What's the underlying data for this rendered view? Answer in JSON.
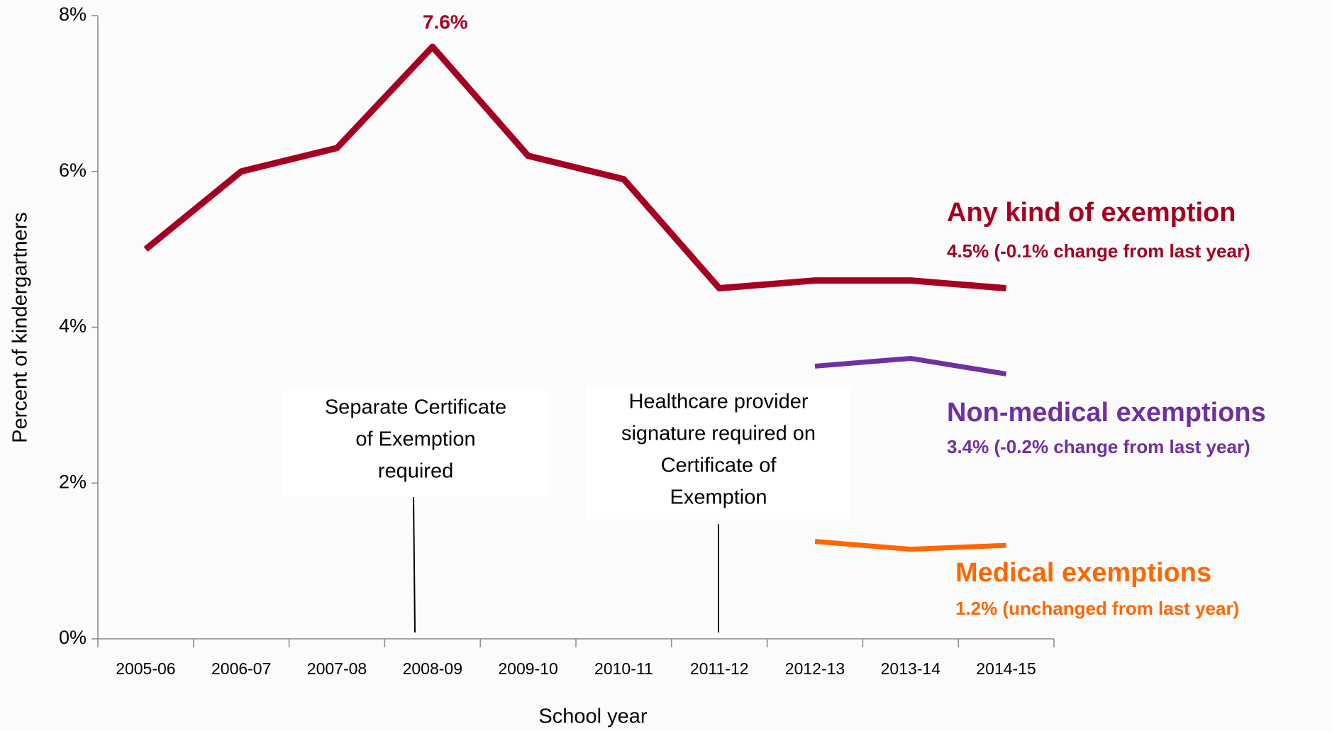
{
  "chart_data": {
    "type": "line",
    "x_label": "School year",
    "y_label": "Percent of kindergartners",
    "categories": [
      "2005-06",
      "2006-07",
      "2007-08",
      "2008-09",
      "2009-10",
      "2010-11",
      "2011-12",
      "2012-13",
      "2013-14",
      "2014-15"
    ],
    "series": [
      {
        "name": "Any kind of exemption",
        "note": "4.5% (-0.1% change from last year)",
        "color": "#a50021",
        "values": [
          5.0,
          6.0,
          6.3,
          7.6,
          6.2,
          5.9,
          4.5,
          4.6,
          4.6,
          4.5
        ],
        "value_labels": [
          null,
          null,
          null,
          "7.6%",
          null,
          null,
          null,
          null,
          null,
          null
        ]
      },
      {
        "name": "Non-medical exemptions",
        "note": "3.4% (-0.2% change from last year)",
        "color": "#7030a0",
        "values": [
          null,
          null,
          null,
          null,
          null,
          null,
          null,
          3.5,
          3.6,
          3.4
        ]
      },
      {
        "name": "Medical exemptions",
        "note": "1.2% (unchanged from last year)",
        "color": "#ff6600",
        "values": [
          null,
          null,
          null,
          null,
          null,
          null,
          null,
          1.25,
          1.15,
          1.2
        ]
      }
    ],
    "annotations": [
      {
        "lines": [
          "Separate Certificate",
          "of Exemption",
          "required"
        ]
      },
      {
        "lines": [
          "Healthcare provider",
          "signature required on",
          "Certificate of",
          "Exemption"
        ]
      }
    ],
    "ylim": [
      0,
      8
    ],
    "yticks": [
      {
        "value": 0,
        "label": "0%"
      },
      {
        "value": 2,
        "label": "2%"
      },
      {
        "value": 4,
        "label": "4%"
      },
      {
        "value": 6,
        "label": "6%"
      },
      {
        "value": 8,
        "label": "8%"
      }
    ]
  }
}
